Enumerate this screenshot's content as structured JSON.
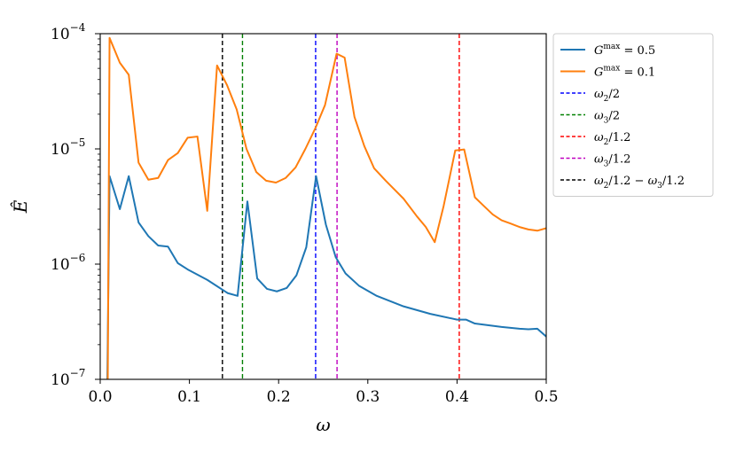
{
  "chart_data": {
    "type": "line",
    "xlabel": "ω",
    "ylabel": "Ê",
    "xscale": "linear",
    "yscale": "log",
    "xlim": [
      0.0,
      0.5
    ],
    "ylim": [
      1e-07,
      0.0001
    ],
    "grid": false,
    "legend_position": "outside-right-top",
    "x_tick_labels": [
      {
        "value": 0.0,
        "label": "0.0"
      },
      {
        "value": 0.1,
        "label": "0.1"
      },
      {
        "value": 0.2,
        "label": "0.2"
      },
      {
        "value": 0.3,
        "label": "0.3"
      },
      {
        "value": 0.4,
        "label": "0.4"
      },
      {
        "value": 0.5,
        "label": "0.5"
      }
    ],
    "y_tick_labels": [
      {
        "value": 1e-07,
        "base": "10",
        "exp": "−7"
      },
      {
        "value": 1e-06,
        "base": "10",
        "exp": "−6"
      },
      {
        "value": 1e-05,
        "base": "10",
        "exp": "−5"
      },
      {
        "value": 0.0001,
        "base": "10",
        "exp": "−4"
      }
    ],
    "series": [
      {
        "name": "G^max = 0.5",
        "color": "#1f77b4",
        "style": "solid",
        "x": [
          0.008,
          0.0105,
          0.022,
          0.032,
          0.043,
          0.054,
          0.065,
          0.076,
          0.087,
          0.098,
          0.12,
          0.143,
          0.154,
          0.165,
          0.176,
          0.187,
          0.198,
          0.209,
          0.22,
          0.231,
          0.242,
          0.253,
          0.264,
          0.275,
          0.29,
          0.31,
          0.34,
          0.37,
          0.4,
          0.41,
          0.42,
          0.45,
          0.47,
          0.48,
          0.49,
          0.5
        ],
        "y": [
          1e-07,
          5.8e-06,
          3e-06,
          5.8e-06,
          2.3e-06,
          1.75e-06,
          1.45e-06,
          1.42e-06,
          1.02e-06,
          9e-07,
          7.3e-07,
          5.6e-07,
          5.3e-07,
          3.5e-06,
          7.5e-07,
          6.1e-07,
          5.8e-07,
          6.2e-07,
          8e-07,
          1.4e-06,
          5.8e-06,
          2.2e-06,
          1.15e-06,
          8.3e-07,
          6.5e-07,
          5.3e-07,
          4.3e-07,
          3.7e-07,
          3.3e-07,
          3.3e-07,
          3.05e-07,
          2.85e-07,
          2.75e-07,
          2.72e-07,
          2.75e-07,
          2.35e-07
        ]
      },
      {
        "name": "G^max = 0.1",
        "color": "#ff7f0e",
        "style": "solid",
        "x": [
          0.0075,
          0.0085,
          0.0105,
          0.022,
          0.032,
          0.043,
          0.054,
          0.065,
          0.076,
          0.087,
          0.098,
          0.109,
          0.12,
          0.131,
          0.142,
          0.153,
          0.164,
          0.175,
          0.186,
          0.197,
          0.208,
          0.219,
          0.23,
          0.241,
          0.252,
          0.265,
          0.274,
          0.285,
          0.296,
          0.307,
          0.32,
          0.34,
          0.355,
          0.365,
          0.375,
          0.385,
          0.398,
          0.404,
          0.408,
          0.42,
          0.43,
          0.44,
          0.45,
          0.46,
          0.47,
          0.48,
          0.49,
          0.5
        ],
        "y": [
          1e-07,
          1e-07,
          9.2e-05,
          5.6e-05,
          4.4e-05,
          7.6e-06,
          5.4e-06,
          5.6e-06,
          8e-06,
          9.2e-06,
          1.25e-05,
          1.28e-05,
          2.9e-06,
          5.3e-05,
          3.6e-05,
          2.2e-05,
          1e-05,
          6.3e-06,
          5.3e-06,
          5.1e-06,
          5.6e-06,
          6.9e-06,
          1e-05,
          1.5e-05,
          2.4e-05,
          6.7e-05,
          6.2e-05,
          1.9e-05,
          1.06e-05,
          6.8e-06,
          5.3e-06,
          3.7e-06,
          2.6e-06,
          2.1e-06,
          1.55e-06,
          3.2e-06,
          9.7e-06,
          9.8e-06,
          9.9e-06,
          3.8e-06,
          3.2e-06,
          2.7e-06,
          2.4e-06,
          2.25e-06,
          2.1e-06,
          2e-06,
          1.95e-06,
          2.05e-06
        ]
      }
    ],
    "vlines": [
      {
        "name": "ω2/2",
        "x": 0.2415,
        "color": "#0000ff"
      },
      {
        "name": "ω3/2",
        "x": 0.1595,
        "color": "#008000"
      },
      {
        "name": "ω2/1.2",
        "x": 0.4025,
        "color": "#ff0000"
      },
      {
        "name": "ω3/1.2",
        "x": 0.2655,
        "color": "#bf00bf"
      },
      {
        "name": "ω2/1.2 − ω3/1.2",
        "x": 0.137,
        "color": "#000000"
      }
    ]
  },
  "legend": [
    {
      "kind": "solid",
      "color": "#1f77b4",
      "base": "G",
      "sup": "max",
      "rest": " = 0.5"
    },
    {
      "kind": "solid",
      "color": "#ff7f0e",
      "base": "G",
      "sup": "max",
      "rest": " = 0.1"
    },
    {
      "kind": "dashed",
      "color": "#0000ff",
      "w": "ω",
      "sub": "2",
      "rest": "/2"
    },
    {
      "kind": "dashed",
      "color": "#008000",
      "w": "ω",
      "sub": "3",
      "rest": "/2"
    },
    {
      "kind": "dashed",
      "color": "#ff0000",
      "w": "ω",
      "sub": "2",
      "rest": "/1.2"
    },
    {
      "kind": "dashed",
      "color": "#bf00bf",
      "w": "ω",
      "sub": "3",
      "rest": "/1.2"
    },
    {
      "kind": "dashed",
      "color": "#000000",
      "w": "ω",
      "sub": "2",
      "rest": "/1.2 − ",
      "w2": "ω",
      "sub2": "3",
      "rest2": "/1.2"
    }
  ]
}
